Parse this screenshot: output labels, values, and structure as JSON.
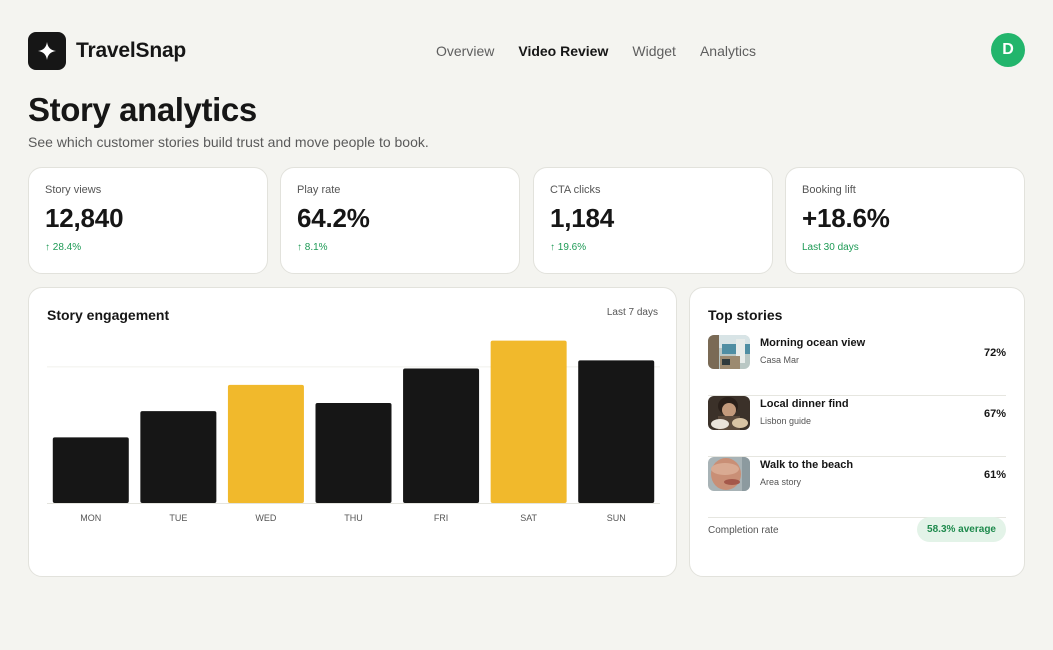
{
  "brand": {
    "name": "TravelSnap",
    "logo_icon": "sparkle-icon"
  },
  "nav": {
    "items": [
      {
        "label": "Overview",
        "active": false
      },
      {
        "label": "Video Review",
        "active": true
      },
      {
        "label": "Widget",
        "active": false
      },
      {
        "label": "Analytics",
        "active": false
      }
    ]
  },
  "user": {
    "initial": "D",
    "avatar_color": "#22b56c"
  },
  "page": {
    "title": "Story analytics",
    "subtitle": "See which customer stories build trust and move people to book."
  },
  "kpis": [
    {
      "label": "Story views",
      "value": "12,840",
      "delta": "↑ 28.4%"
    },
    {
      "label": "Play rate",
      "value": "64.2%",
      "delta": "↑ 8.1%"
    },
    {
      "label": "CTA clicks",
      "value": "1,184",
      "delta": "↑ 19.6%"
    },
    {
      "label": "Booking lift",
      "value": "+18.6%",
      "delta": "Last 30 days"
    }
  ],
  "engagement": {
    "title": "Story engagement",
    "range": "Last 7 days"
  },
  "chart_data": {
    "type": "bar",
    "categories": [
      "MON",
      "TUE",
      "WED",
      "THU",
      "FRI",
      "SAT",
      "SUN"
    ],
    "values": [
      40,
      56,
      72,
      61,
      82,
      99,
      87
    ],
    "highlighted": [
      "WED",
      "SAT"
    ],
    "ylim": [
      0,
      100
    ],
    "grid": true,
    "colors": {
      "default": "#161616",
      "highlight": "#f1b92c"
    }
  },
  "top_stories": {
    "title": "Top stories",
    "items": [
      {
        "title": "Morning ocean view",
        "subtitle": "Casa Mar",
        "percent": "72%"
      },
      {
        "title": "Local dinner find",
        "subtitle": "Lisbon guide",
        "percent": "67%"
      },
      {
        "title": "Walk to the beach",
        "subtitle": "Area story",
        "percent": "61%"
      }
    ],
    "completion_label": "Completion rate",
    "completion_value": "58.3% average"
  },
  "colors": {
    "accent_green": "#1d9a55",
    "highlight_yellow": "#f1b92c",
    "dark": "#161616"
  }
}
